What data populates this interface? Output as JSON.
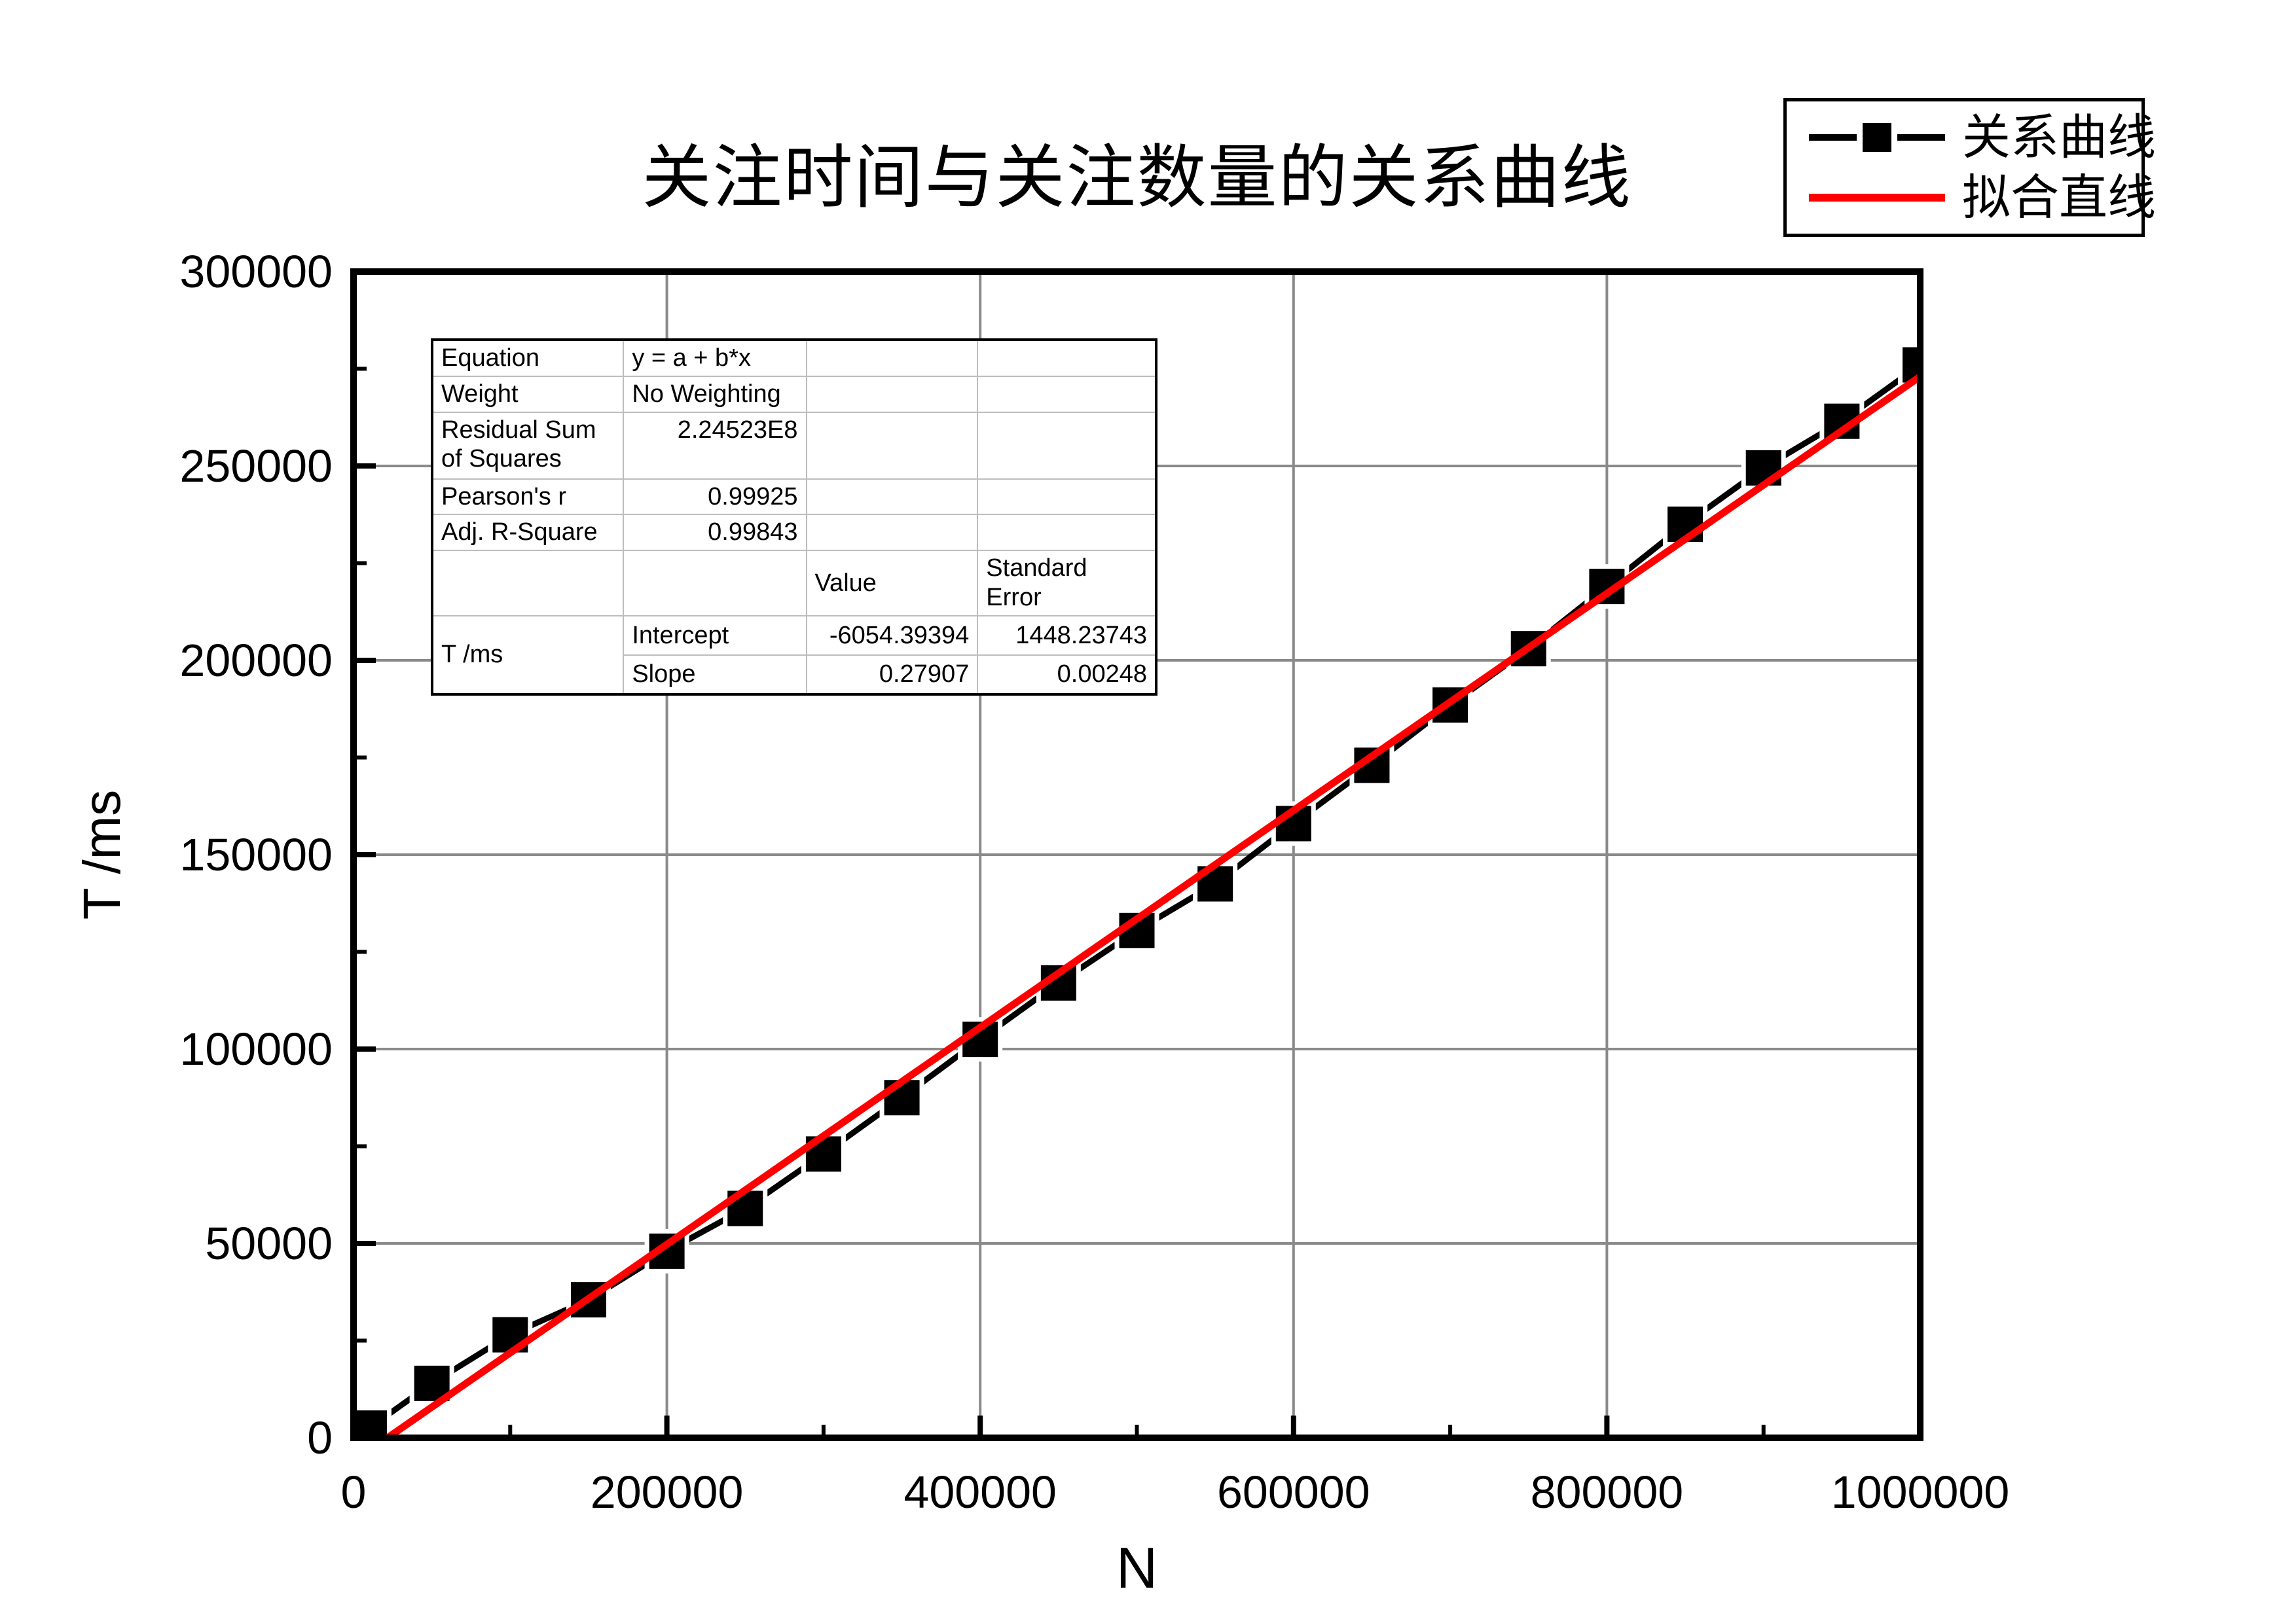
{
  "chart_data": {
    "type": "line",
    "title": "关注时间与关注数量的关系曲线",
    "xlabel": "N",
    "ylabel": "T /ms",
    "xlim": [
      0,
      1000000
    ],
    "ylim": [
      0,
      300000
    ],
    "x_major_ticks": [
      0,
      200000,
      400000,
      600000,
      800000,
      1000000
    ],
    "y_major_ticks": [
      0,
      50000,
      100000,
      150000,
      200000,
      250000,
      300000
    ],
    "x_minor_step": 100000,
    "y_minor_step": 25000,
    "grid": "major-on",
    "legend_position": "top-right",
    "colors": {
      "series": "#000000",
      "fit": "#ff0000",
      "grid": "#8a8a8a",
      "frame": "#000000",
      "background": "#ffffff"
    },
    "series": [
      {
        "name": "关系曲线",
        "type": "line+marker",
        "marker": "filled-square",
        "color": "#000000",
        "points": [
          [
            10000,
            2500
          ],
          [
            50000,
            14000
          ],
          [
            100000,
            26500
          ],
          [
            150000,
            35500
          ],
          [
            200000,
            48000
          ],
          [
            250000,
            59000
          ],
          [
            300000,
            73000
          ],
          [
            350000,
            87500
          ],
          [
            400000,
            102500
          ],
          [
            450000,
            117000
          ],
          [
            500000,
            130500
          ],
          [
            550000,
            142500
          ],
          [
            600000,
            158000
          ],
          [
            650000,
            173000
          ],
          [
            700000,
            188500
          ],
          [
            750000,
            203000
          ],
          [
            800000,
            219000
          ],
          [
            850000,
            235000
          ],
          [
            900000,
            249500
          ],
          [
            950000,
            261500
          ],
          [
            1000000,
            276000
          ]
        ]
      },
      {
        "name": "拟合直线",
        "type": "line",
        "color": "#ff0000",
        "fit": {
          "intercept": -6054.39394,
          "slope": 0.27907
        }
      }
    ]
  },
  "stats_table": {
    "rows": {
      "equation_label": "Equation",
      "equation_value": "y = a + b*x",
      "weight_label": "Weight",
      "weight_value": "No Weighting",
      "rss_label": "Residual Sum of Squares",
      "rss_value": "2.24523E8",
      "pearson_label": "Pearson's r",
      "pearson_value": "0.99925",
      "adjr_label": "Adj. R-Square",
      "adjr_value": "0.99843",
      "value_header": "Value",
      "stderr_header": "Standard Error",
      "dep_var": "T /ms",
      "intercept_label": "Intercept",
      "intercept_value": "-6054.39394",
      "intercept_stderr": "1448.23743",
      "slope_label": "Slope",
      "slope_value": "0.27907",
      "slope_stderr": "0.00248"
    }
  }
}
